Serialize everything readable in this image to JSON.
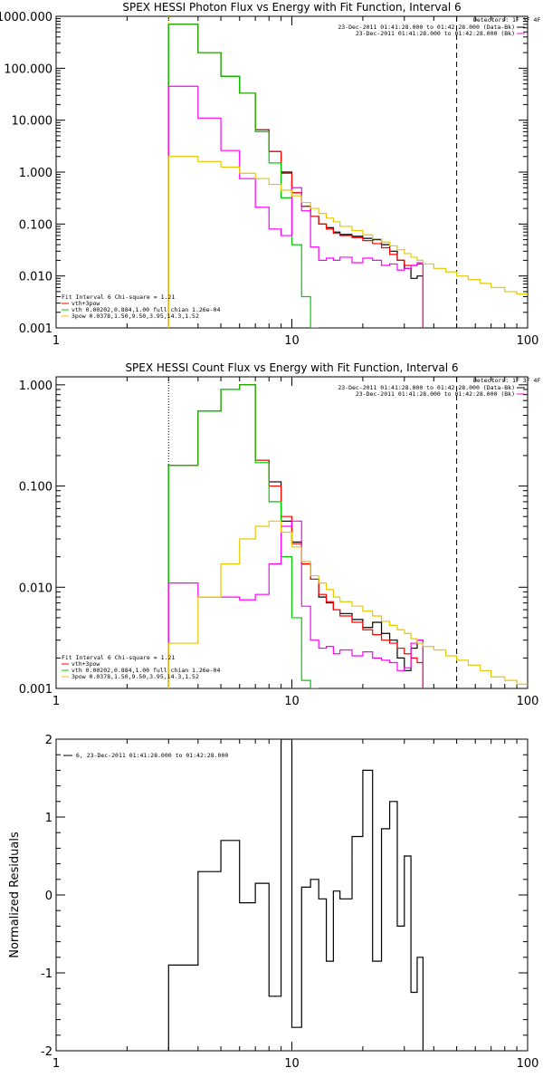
{
  "chart_data": [
    {
      "type": "line",
      "title": "SPEX HESSI Photon Flux vs Energy with Fit Function, Interval 6",
      "xscale": "log",
      "yscale": "log",
      "xlim": [
        1,
        100
      ],
      "ylim": [
        0.001,
        1000
      ],
      "xticks": [
        "1",
        "10",
        "100"
      ],
      "yticks": [
        "1000.000",
        "100.000",
        "10.000",
        "1.000",
        "0.100",
        "0.010",
        "0.001"
      ],
      "ytick_values": [
        1000,
        100,
        10,
        1,
        0.1,
        0.01,
        0.001
      ],
      "bin_edges": [
        3,
        4,
        5,
        6,
        7,
        8,
        9,
        10,
        11,
        12,
        13,
        14,
        15,
        16,
        18,
        20,
        22,
        24,
        26,
        28,
        30,
        32,
        34,
        36,
        40,
        45,
        50,
        56,
        63,
        70,
        80,
        90,
        100
      ],
      "series": [
        {
          "color": "#000000",
          "values": [
            700,
            200,
            70,
            33,
            6.5,
            2.5,
            1.0,
            0.4,
            0.22,
            0.14,
            0.1,
            0.085,
            0.07,
            0.063,
            0.058,
            0.053,
            0.05,
            0.04,
            0.03,
            0.02,
            0.014,
            0.009,
            0.01,
            null,
            null,
            null,
            null,
            null,
            null,
            null,
            null,
            null
          ]
        },
        {
          "color": "#ff0000",
          "values": [
            700,
            200,
            70,
            33,
            6.5,
            2.5,
            0.95,
            0.4,
            0.22,
            0.14,
            0.1,
            0.08,
            0.066,
            0.06,
            0.055,
            0.048,
            0.042,
            0.035,
            0.026,
            0.02,
            0.016,
            0.016,
            0.017,
            null,
            null,
            null,
            null,
            null,
            null,
            null,
            null,
            null
          ]
        },
        {
          "color": "#00cc00",
          "values": [
            700,
            200,
            70,
            33,
            6,
            1.5,
            0.32,
            0.04,
            0.004,
            0.0006,
            null,
            null,
            null,
            null,
            null,
            null,
            null,
            null,
            null,
            null,
            null,
            null,
            null,
            null,
            null,
            null,
            null,
            null,
            null,
            null,
            null,
            null
          ]
        },
        {
          "color": "#ff00ff",
          "values": [
            45,
            11,
            2.6,
            0.75,
            0.21,
            0.08,
            0.06,
            0.5,
            0.18,
            0.036,
            0.02,
            0.022,
            0.02,
            0.023,
            0.018,
            0.022,
            0.02,
            0.016,
            0.017,
            0.013,
            0.014,
            0.016,
            0.018,
            null,
            null,
            null,
            null,
            null,
            null,
            null,
            null,
            null
          ]
        },
        {
          "color": "#e6c800",
          "values": [
            2.0,
            1.6,
            1.25,
            0.95,
            0.75,
            0.58,
            0.45,
            0.35,
            0.26,
            0.2,
            0.16,
            0.13,
            0.11,
            0.09,
            0.075,
            0.062,
            0.052,
            0.045,
            0.038,
            0.032,
            0.027,
            0.023,
            0.02,
            0.017,
            0.014,
            0.012,
            0.01,
            0.0085,
            0.0072,
            0.006,
            0.005,
            0.0045
          ]
        }
      ],
      "vlines": [
        {
          "x": 3,
          "color": "#e6c800",
          "style": "dotted"
        },
        {
          "x": 50,
          "color": "#000000",
          "style": "dashed"
        }
      ],
      "legend_right": {
        "header": "Detectors: 1F 3F 4F 8F",
        "lines": [
          "23-Dec-2011 01:41:28.000 to 01:42:28.000 (Data-Bk)",
          "23-Dec-2011 01:41:28.000 to 01:42:28.000 (Bk)"
        ],
        "colors": [
          "#000000",
          "#ff00ff"
        ],
        "placement": "top-right"
      },
      "legend_left": {
        "header": "Fit Interval 6   Chi-square = 1.21",
        "lines": [
          "vth+3pow",
          "vth 0.00202,0.884,1.00  full chian 1.26e-04",
          "3pow 0.0378,1.50,9.50,3.95,14.3,1.52"
        ],
        "colors": [
          "#ff0000",
          "#00cc00",
          "#e6c800"
        ],
        "placement": "bottom-left"
      }
    },
    {
      "type": "line",
      "title": "SPEX HESSI Count Flux vs Energy with Fit Function, Interval 6",
      "xscale": "log",
      "yscale": "log",
      "xlim": [
        1,
        100
      ],
      "ylim": [
        0.001,
        1.2
      ],
      "xticks": [
        "1",
        "10",
        "100"
      ],
      "yticks": [
        "1.000",
        "0.100",
        "0.010",
        "0.001"
      ],
      "ytick_values": [
        1,
        0.1,
        0.01,
        0.001
      ],
      "bin_edges": [
        3,
        4,
        5,
        6,
        7,
        8,
        9,
        10,
        11,
        12,
        13,
        14,
        15,
        16,
        18,
        20,
        22,
        24,
        26,
        28,
        30,
        32,
        34,
        36,
        40,
        45,
        50,
        56,
        63,
        70,
        80,
        90,
        100
      ],
      "series": [
        {
          "color": "#000000",
          "values": [
            0.16,
            0.55,
            0.9,
            1.0,
            0.18,
            0.11,
            0.045,
            0.028,
            0.017,
            0.012,
            0.008,
            0.007,
            0.006,
            0.0055,
            0.0048,
            0.004,
            0.0045,
            0.0035,
            0.003,
            0.002,
            0.0015,
            0.0025,
            0.003,
            null,
            null,
            null,
            null,
            null,
            null,
            null,
            null,
            null
          ]
        },
        {
          "color": "#ff0000",
          "values": [
            0.16,
            0.55,
            0.9,
            1.0,
            0.18,
            0.1,
            0.05,
            0.027,
            0.017,
            0.012,
            0.0085,
            0.0072,
            0.006,
            0.0052,
            0.0045,
            0.0038,
            0.0034,
            0.003,
            0.0028,
            0.0025,
            0.0022,
            0.002,
            0.0018,
            null,
            null,
            null,
            null,
            null,
            null,
            null,
            null,
            null
          ]
        },
        {
          "color": "#00cc00",
          "values": [
            0.16,
            0.55,
            0.9,
            1.0,
            0.17,
            0.07,
            0.02,
            0.005,
            0.0012,
            0.0007,
            null,
            null,
            null,
            null,
            null,
            null,
            null,
            null,
            null,
            null,
            null,
            null,
            null,
            null,
            null,
            null,
            null,
            null,
            null,
            null,
            null,
            null
          ]
        },
        {
          "color": "#ff00ff",
          "values": [
            0.011,
            0.008,
            0.008,
            0.0075,
            0.0085,
            0.017,
            0.04,
            0.045,
            0.0065,
            0.003,
            0.0025,
            0.0026,
            0.0022,
            0.0024,
            0.0021,
            0.0023,
            0.002,
            0.0019,
            0.0018,
            0.0015,
            0.0016,
            0.0028,
            0.003,
            null,
            null,
            null,
            null,
            null,
            null,
            null,
            null,
            null
          ]
        },
        {
          "color": "#e6c800",
          "values": [
            0.0028,
            0.008,
            0.017,
            0.03,
            0.04,
            0.045,
            0.035,
            0.025,
            0.018,
            0.013,
            0.011,
            0.0095,
            0.008,
            0.0072,
            0.0065,
            0.0058,
            0.0052,
            0.0046,
            0.0042,
            0.0038,
            0.0035,
            0.0031,
            0.0028,
            0.0026,
            0.0024,
            0.0021,
            0.0019,
            0.0017,
            0.0015,
            0.0013,
            0.0012,
            0.0011
          ]
        }
      ],
      "vlines": [
        {
          "x": 3,
          "color": "#000000",
          "style": "dotted"
        },
        {
          "x": 50,
          "color": "#000000",
          "style": "dashed"
        }
      ],
      "legend_right": {
        "header": "Detectors: 1F 3F 4F 8F",
        "lines": [
          "23-Dec-2011 01:41:28.000 to 01:42:28.000 (Data-Bk)",
          "23-Dec-2011 01:41:28.000 to 01:42:28.000 (Bk)"
        ],
        "colors": [
          "#000000",
          "#ff00ff"
        ],
        "placement": "top-right"
      },
      "legend_left": {
        "header": "Fit Interval 6   Chi-square = 1.21",
        "lines": [
          "vth+3pow",
          "vth 0.00202,0.884,1.00  full chian 1.26e-04",
          "3pow 0.0378,1.50,9.50,3.95,14.3,1.52"
        ],
        "colors": [
          "#ff0000",
          "#00cc00",
          "#e6c800"
        ],
        "placement": "bottom-left"
      }
    },
    {
      "type": "line",
      "title": "",
      "ylabel": "Normalized Residuals",
      "xscale": "log",
      "yscale": "linear",
      "xlim": [
        1,
        100
      ],
      "ylim": [
        -2,
        2
      ],
      "xticks": [
        "1",
        "10",
        "100"
      ],
      "yticks": [
        "2",
        "1",
        "0",
        "-1",
        "-2"
      ],
      "ytick_values": [
        2,
        1,
        0,
        -1,
        -2
      ],
      "bin_edges": [
        3,
        4,
        5,
        6,
        7,
        8,
        9,
        10,
        11,
        12,
        13,
        14,
        15,
        16,
        18,
        20,
        22,
        24,
        26,
        28,
        30,
        32,
        34,
        36,
        40,
        45,
        50
      ],
      "series": [
        {
          "color": "#000000",
          "values": [
            -0.9,
            0.3,
            0.7,
            -0.1,
            0.15,
            -1.3,
            2.0,
            -1.7,
            0.1,
            0.2,
            -0.05,
            -0.85,
            0.05,
            -0.05,
            0.75,
            1.6,
            -0.85,
            0.85,
            1.2,
            -0.4,
            0.5,
            -1.25,
            -0.8,
            null,
            null,
            null
          ]
        }
      ],
      "legend": {
        "lines": [
          "6, 23-Dec-2011 01:41:28.000 to 01:42:28.000"
        ],
        "placement": "top-left"
      }
    }
  ]
}
